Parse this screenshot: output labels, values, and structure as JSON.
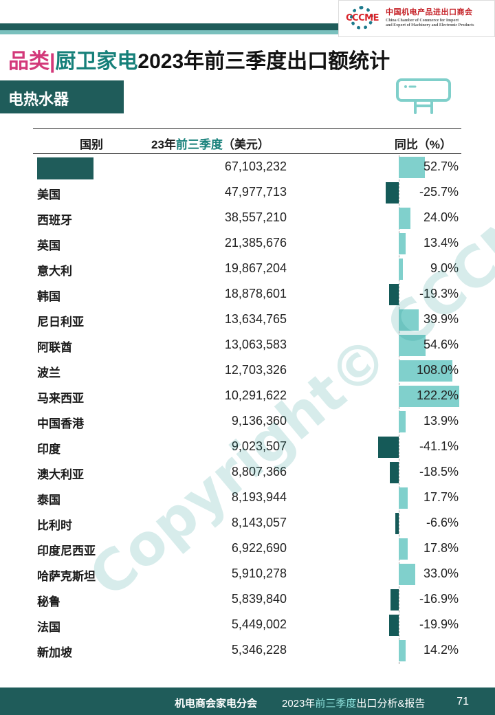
{
  "header": {
    "logo_abbr": "CCCME",
    "logo_cn": "中国机电产品进出口商会",
    "logo_en_line1": "China Chamber of Commerce for Import",
    "logo_en_line2": "and Export of Machinery and Electronic Products",
    "title_category": "品类",
    "title_separator": "|",
    "title_subcategory": "厨卫家电",
    "title_main": "2023年前三季度出口额统计",
    "section": "电热水器"
  },
  "table": {
    "col_country": "国别",
    "col_value_prefix": "23年",
    "col_value_highlight": "前三季度",
    "col_value_suffix": "（美元）",
    "col_yoy": "同比（%）",
    "rows": [
      {
        "country": "",
        "value": "67,103,232",
        "yoy": "52.7%",
        "yoy_num": 52.7,
        "masked": true
      },
      {
        "country": "美国",
        "value": "47,977,713",
        "yoy": "-25.7%",
        "yoy_num": -25.7
      },
      {
        "country": "西班牙",
        "value": "38,557,210",
        "yoy": "24.0%",
        "yoy_num": 24.0
      },
      {
        "country": "英国",
        "value": "21,385,676",
        "yoy": "13.4%",
        "yoy_num": 13.4
      },
      {
        "country": "意大利",
        "value": "19,867,204",
        "yoy": "9.0%",
        "yoy_num": 9.0
      },
      {
        "country": "韩国",
        "value": "18,878,601",
        "yoy": "-19.3%",
        "yoy_num": -19.3
      },
      {
        "country": "尼日利亚",
        "value": "13,634,765",
        "yoy": "39.9%",
        "yoy_num": 39.9
      },
      {
        "country": "阿联酋",
        "value": "13,063,583",
        "yoy": "54.6%",
        "yoy_num": 54.6
      },
      {
        "country": "波兰",
        "value": "12,703,326",
        "yoy": "108.0%",
        "yoy_num": 108.0
      },
      {
        "country": "马来西亚",
        "value": "10,291,622",
        "yoy": "122.2%",
        "yoy_num": 122.2
      },
      {
        "country": "中国香港",
        "value": "9,136,360",
        "yoy": "13.9%",
        "yoy_num": 13.9
      },
      {
        "country": "印度",
        "value": "9,023,507",
        "yoy": "-41.1%",
        "yoy_num": -41.1
      },
      {
        "country": "澳大利亚",
        "value": "8,807,366",
        "yoy": "-18.5%",
        "yoy_num": -18.5
      },
      {
        "country": "泰国",
        "value": "8,193,944",
        "yoy": "17.7%",
        "yoy_num": 17.7
      },
      {
        "country": "比利时",
        "value": "8,143,057",
        "yoy": "-6.6%",
        "yoy_num": -6.6
      },
      {
        "country": "印度尼西亚",
        "value": "6,922,690",
        "yoy": "17.8%",
        "yoy_num": 17.8
      },
      {
        "country": "哈萨克斯坦",
        "value": "5,910,278",
        "yoy": "33.0%",
        "yoy_num": 33.0
      },
      {
        "country": "秘鲁",
        "value": "5,839,840",
        "yoy": "-16.9%",
        "yoy_num": -16.9
      },
      {
        "country": "法国",
        "value": "5,449,002",
        "yoy": "-19.9%",
        "yoy_num": -19.9
      },
      {
        "country": "新加坡",
        "value": "5,346,228",
        "yoy": "14.2%",
        "yoy_num": 14.2
      }
    ]
  },
  "watermark": "Copyright© CCCME",
  "footer": {
    "org": "机电商会家电分会",
    "report_prefix": "2023年",
    "report_highlight": "前三季度",
    "report_suffix": "出口分析&报告",
    "page": "71"
  },
  "colors": {
    "dark_teal": "#1f5c5a",
    "positive_bar": "#80d0cc",
    "negative_bar": "#155a58",
    "accent_pink": "#d3397a",
    "accent_teal": "#16807a"
  }
}
